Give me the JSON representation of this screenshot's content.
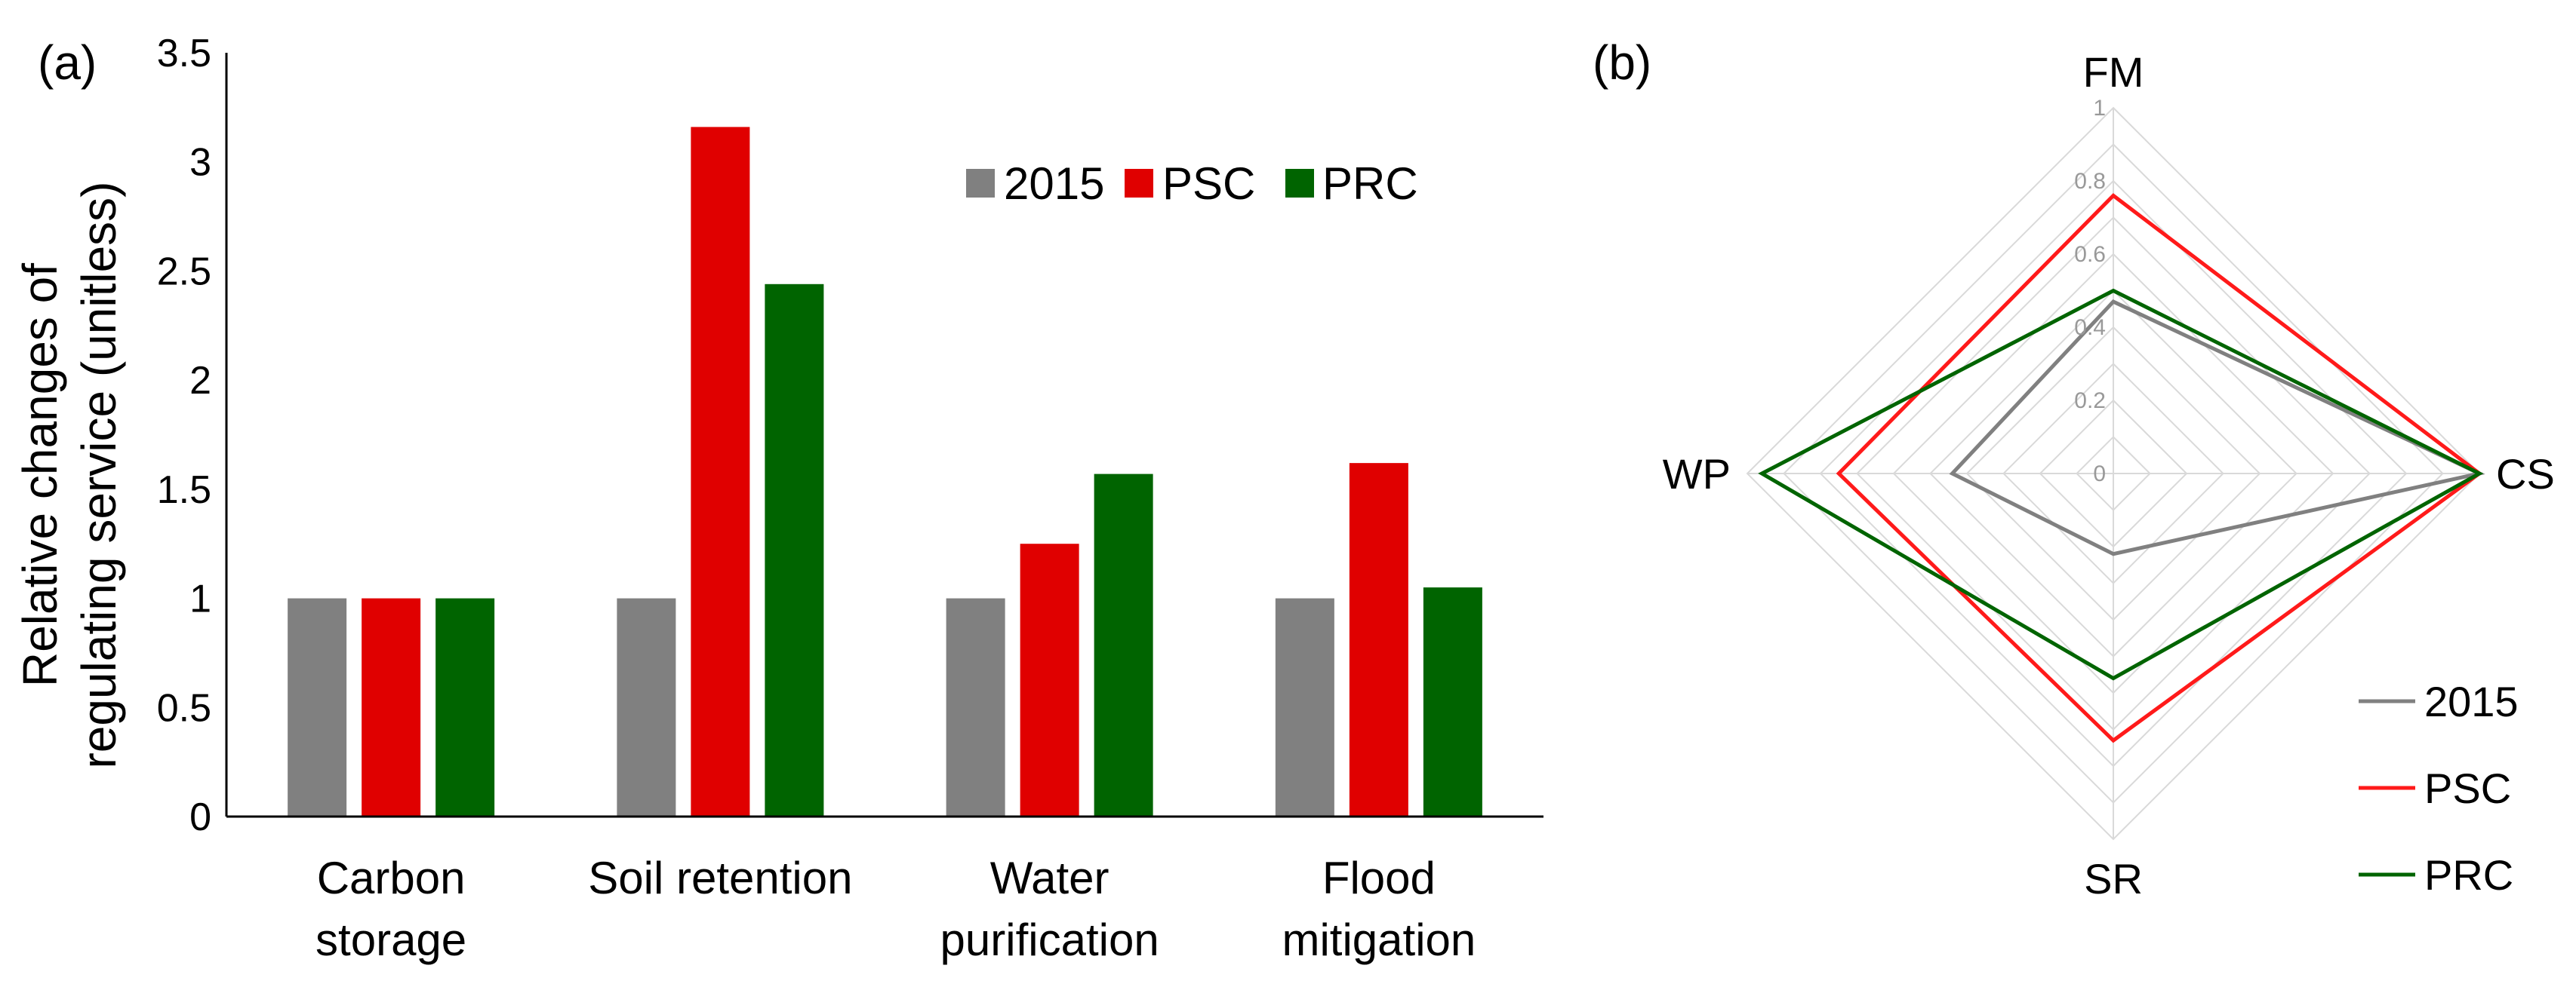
{
  "panel_a_label": "(a)",
  "panel_b_label": "(b)",
  "chart_data": [
    {
      "type": "bar",
      "panel": "(a)",
      "ylabel_line1": "Relative changes of",
      "ylabel_line2": "regulating service (unitless)",
      "xlabel": "",
      "ylim": [
        0,
        3.5
      ],
      "yticks": [
        "0",
        "0.5",
        "1",
        "1.5",
        "2",
        "2.5",
        "3",
        "3.5"
      ],
      "categories": [
        [
          "Carbon",
          "storage"
        ],
        [
          "Soil retention"
        ],
        [
          "Water",
          "purification"
        ],
        [
          "Flood",
          "mitigation"
        ]
      ],
      "legend_position": "top-right",
      "series": [
        {
          "name": "2015",
          "color": "#808080",
          "values": [
            1.0,
            1.0,
            1.0,
            1.0
          ]
        },
        {
          "name": "PSC",
          "color": "#e00000",
          "values": [
            1.0,
            3.16,
            1.25,
            1.62
          ]
        },
        {
          "name": "PRC",
          "color": "#006400",
          "values": [
            1.0,
            2.44,
            1.57,
            1.05
          ]
        }
      ]
    },
    {
      "type": "radar",
      "panel": "(b)",
      "axes": [
        "FM",
        "CS",
        "SR",
        "WP"
      ],
      "rlim": [
        0,
        1
      ],
      "rticks": [
        "0",
        "0.2",
        "0.4",
        "0.6",
        "0.8",
        "1"
      ],
      "legend_position": "bottom-right",
      "series": [
        {
          "name": "2015",
          "color": "#808080",
          "values": [
            0.47,
            1.0,
            0.22,
            0.44
          ]
        },
        {
          "name": "PSC",
          "color": "#ff1a1a",
          "values": [
            0.76,
            1.0,
            0.73,
            0.75
          ]
        },
        {
          "name": "PRC",
          "color": "#006400",
          "values": [
            0.5,
            1.0,
            0.56,
            0.96
          ]
        }
      ]
    }
  ]
}
